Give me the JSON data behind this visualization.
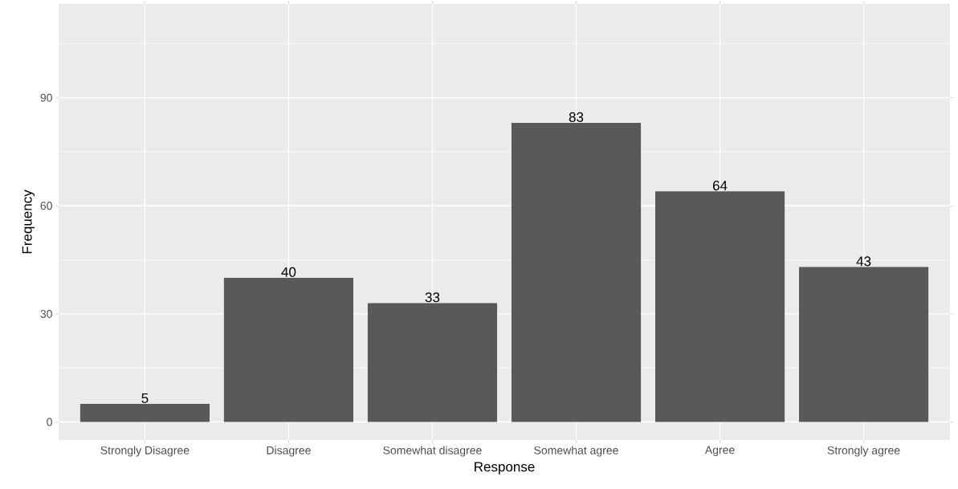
{
  "chart_data": {
    "type": "bar",
    "xlabel": "Response",
    "ylabel": "Frequency",
    "categories": [
      "Strongly Disagree",
      "Disagree",
      "Somewhat disagree",
      "Somewhat agree",
      "Agree",
      "Strongly agree"
    ],
    "values": [
      5,
      40,
      33,
      83,
      64,
      43
    ],
    "color": "#595959",
    "ylim": [
      -5,
      116
    ],
    "yticks": [
      0,
      30,
      60,
      90
    ],
    "grid": true,
    "data_labels": true
  }
}
